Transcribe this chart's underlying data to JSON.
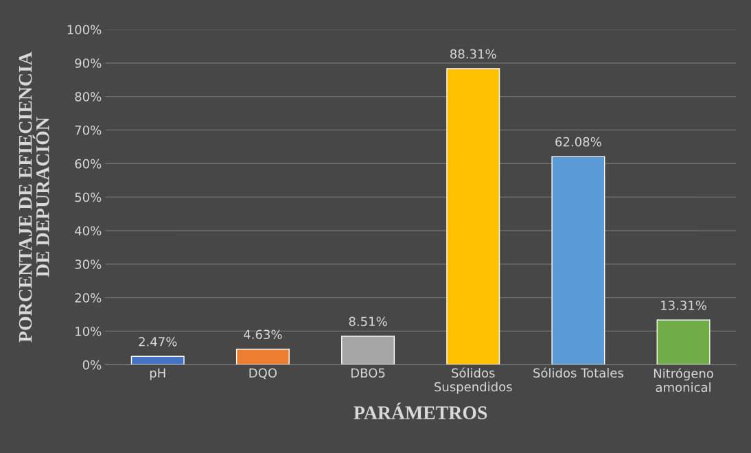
{
  "chart_data": {
    "type": "bar",
    "categories": [
      "pH",
      "DQO",
      "DBO5",
      "Sólidos\nSuspendidos",
      "Sólidos Totales",
      "Nitrógeno\namonical"
    ],
    "values": [
      2.47,
      4.63,
      8.51,
      88.31,
      62.08,
      13.31
    ],
    "colors": [
      "#4472c4",
      "#ed7d31",
      "#a5a5a5",
      "#ffc000",
      "#5b9bd5",
      "#70ad47"
    ],
    "value_labels": [
      "2.47%",
      "4.63%",
      "8.51%",
      "88.31%",
      "62.08%",
      "13.31%"
    ],
    "xlabel": "PARÁMETROS",
    "ylabel": "PORCENTAJE DE EFIECIENCIA\nDE DEPURACIÓN",
    "ylim": [
      0,
      100
    ],
    "yticks": [
      {
        "value": 0,
        "label": "0%"
      },
      {
        "value": 10,
        "label": "10%"
      },
      {
        "value": 20,
        "label": "20%"
      },
      {
        "value": 30,
        "label": "30%"
      },
      {
        "value": 40,
        "label": "40%"
      },
      {
        "value": 50,
        "label": "50%"
      },
      {
        "value": 60,
        "label": "60%"
      },
      {
        "value": 70,
        "label": "70%"
      },
      {
        "value": 80,
        "label": "80%"
      },
      {
        "value": 90,
        "label": "90%"
      },
      {
        "value": 100,
        "label": "100%"
      }
    ],
    "grid": "y",
    "legend": false
  }
}
